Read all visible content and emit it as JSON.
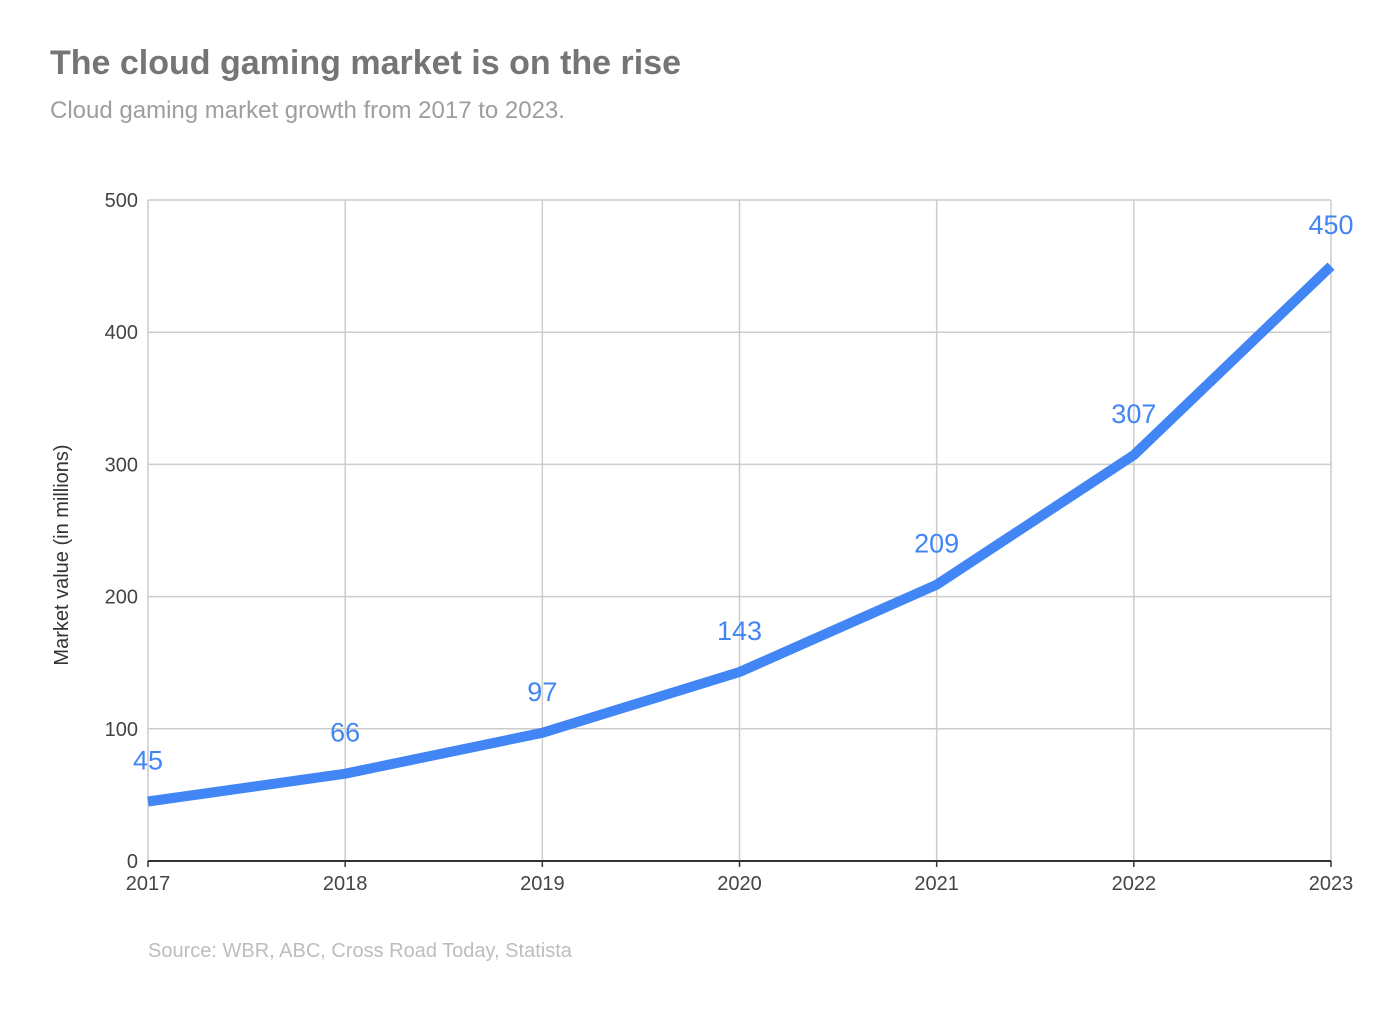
{
  "title": "The cloud gaming market is on the rise",
  "subtitle": "Cloud gaming market growth from 2017 to 2023.",
  "source": "Source: WBR, ABC, Cross Road Today, Statista",
  "colors": {
    "line": "#4285f4",
    "grid": "#cccccc",
    "axis": "#333333",
    "tick_text": "#444444"
  },
  "chart_data": {
    "type": "line",
    "title": "The cloud gaming market is on the rise",
    "subtitle": "Cloud gaming market growth from 2017 to 2023.",
    "xlabel": "",
    "ylabel": "Market value (in millions)",
    "categories": [
      "2017",
      "2018",
      "2019",
      "2020",
      "2021",
      "2022",
      "2023"
    ],
    "series": [
      {
        "values": [
          45,
          66,
          97,
          143,
          209,
          307,
          450
        ]
      }
    ],
    "data_labels": [
      "45",
      "66",
      "97",
      "143",
      "209",
      "307",
      "450"
    ],
    "ylim": [
      0,
      500
    ],
    "yticks": [
      0,
      100,
      200,
      300,
      400,
      500
    ],
    "grid": true,
    "legend": "none"
  }
}
